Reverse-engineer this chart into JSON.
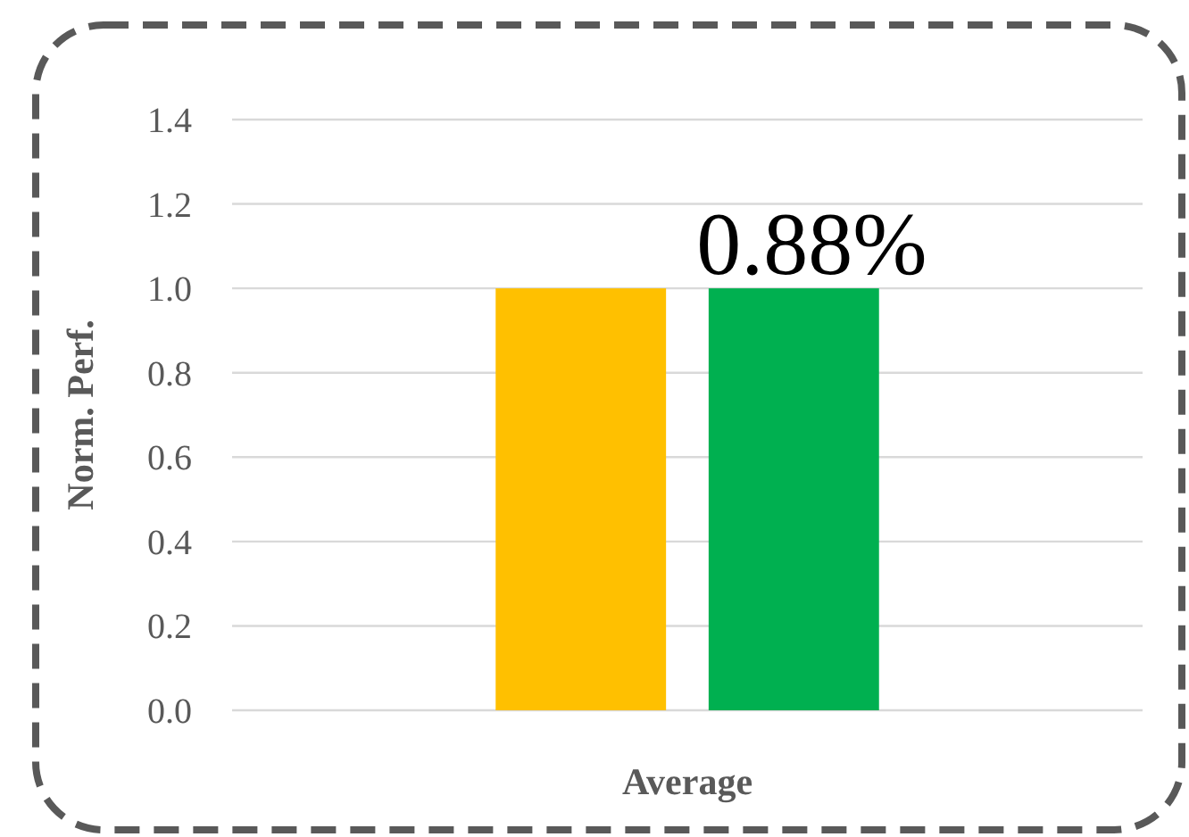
{
  "chart_data": {
    "type": "bar",
    "ylabel": "Norm. Perf.",
    "categories": [
      "Average"
    ],
    "series": [
      {
        "color": "#ffc000",
        "values": [
          1.0
        ]
      },
      {
        "color": "#00b050",
        "values": [
          1.0
        ]
      }
    ],
    "ylim": [
      0,
      1.4
    ],
    "yticks": [
      {
        "value": 0,
        "label": "0.0"
      },
      {
        "value": 0.2,
        "label": "0.2"
      },
      {
        "value": 0.4,
        "label": "0.4"
      },
      {
        "value": 0.6,
        "label": "0.6"
      },
      {
        "value": 0.8,
        "label": "0.8"
      },
      {
        "value": 1,
        "label": "1.0"
      },
      {
        "value": 1.2,
        "label": "1.2"
      },
      {
        "value": 1.4,
        "label": "1.4"
      }
    ],
    "grid": "y",
    "annotations": [
      "0.88%"
    ]
  }
}
